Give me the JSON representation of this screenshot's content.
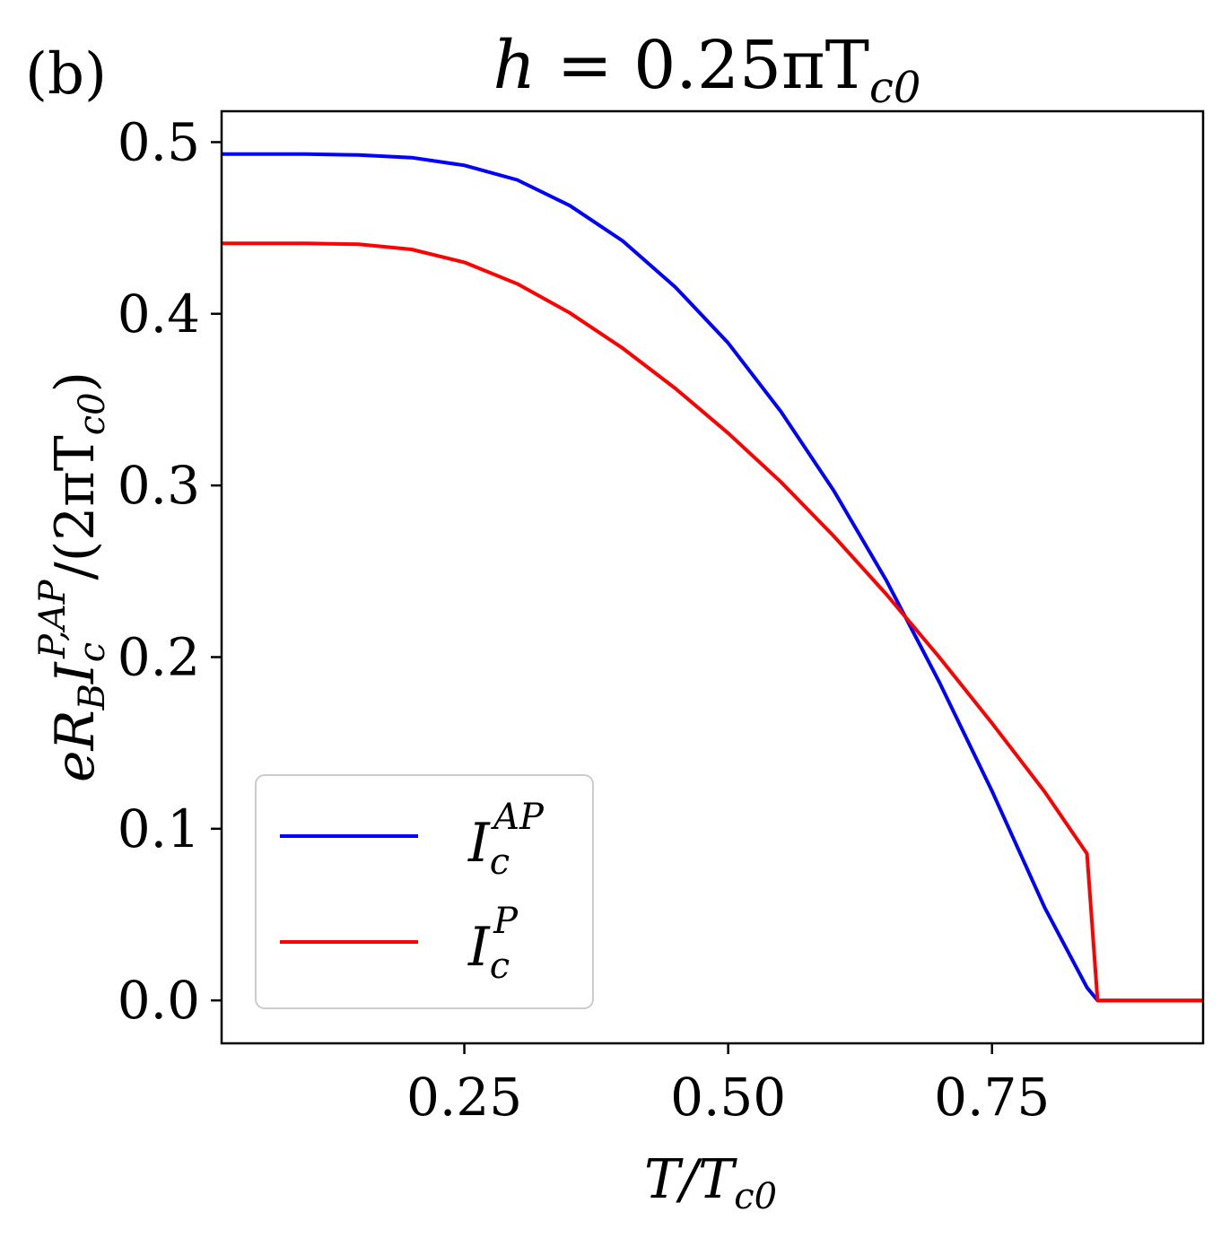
{
  "panel_label": "(b)",
  "title": {
    "lhs": "h",
    "eq": " = 0.25πT",
    "sub": "c0"
  },
  "xlabel": {
    "a": "T/T",
    "sub": "c0"
  },
  "ylabel": {
    "e": "eR",
    "b": "B",
    "i": "I",
    "c": "c",
    "sup": "P,AP",
    "rest": "/(2πT",
    "sub": "c0",
    "close": ")"
  },
  "legend": [
    {
      "main": "I",
      "sub": "c",
      "sup": "AP",
      "color": "#0000ff"
    },
    {
      "main": "I",
      "sub": "c",
      "sup": "P",
      "color": "#ff0000"
    }
  ],
  "chart_data": {
    "type": "line",
    "xlim": [
      0.02,
      0.95
    ],
    "ylim": [
      -0.025,
      0.518
    ],
    "xticks": [
      0.25,
      0.5,
      0.75
    ],
    "xtick_labels": [
      "0.25",
      "0.50",
      "0.75"
    ],
    "yticks": [
      0.0,
      0.1,
      0.2,
      0.3,
      0.4,
      0.5
    ],
    "ytick_labels": [
      "0.0",
      "0.1",
      "0.2",
      "0.3",
      "0.4",
      "0.5"
    ],
    "grid": false,
    "legend_position": "lower-left",
    "series": [
      {
        "name": "I_c^AP",
        "color": "#0000ff",
        "x": [
          0.02,
          0.1,
          0.15,
          0.2,
          0.25,
          0.3,
          0.35,
          0.4,
          0.45,
          0.5,
          0.55,
          0.6,
          0.65,
          0.7,
          0.75,
          0.8,
          0.84,
          0.85,
          0.9,
          0.95
        ],
        "y": [
          0.493,
          0.493,
          0.4925,
          0.491,
          0.4865,
          0.478,
          0.463,
          0.4425,
          0.4155,
          0.383,
          0.343,
          0.297,
          0.2445,
          0.1855,
          0.122,
          0.054,
          0.0075,
          0.0,
          0.0,
          0.0
        ]
      },
      {
        "name": "I_c^P",
        "color": "#ff0000",
        "x": [
          0.02,
          0.1,
          0.15,
          0.2,
          0.25,
          0.3,
          0.35,
          0.4,
          0.45,
          0.5,
          0.55,
          0.6,
          0.65,
          0.7,
          0.75,
          0.8,
          0.84,
          0.85,
          0.9,
          0.95
        ],
        "y": [
          0.441,
          0.441,
          0.4405,
          0.4375,
          0.43,
          0.4175,
          0.4005,
          0.38,
          0.3565,
          0.3305,
          0.302,
          0.2705,
          0.2365,
          0.2,
          0.1615,
          0.1215,
          0.0855,
          0.0,
          0.0,
          0.0
        ]
      }
    ]
  }
}
